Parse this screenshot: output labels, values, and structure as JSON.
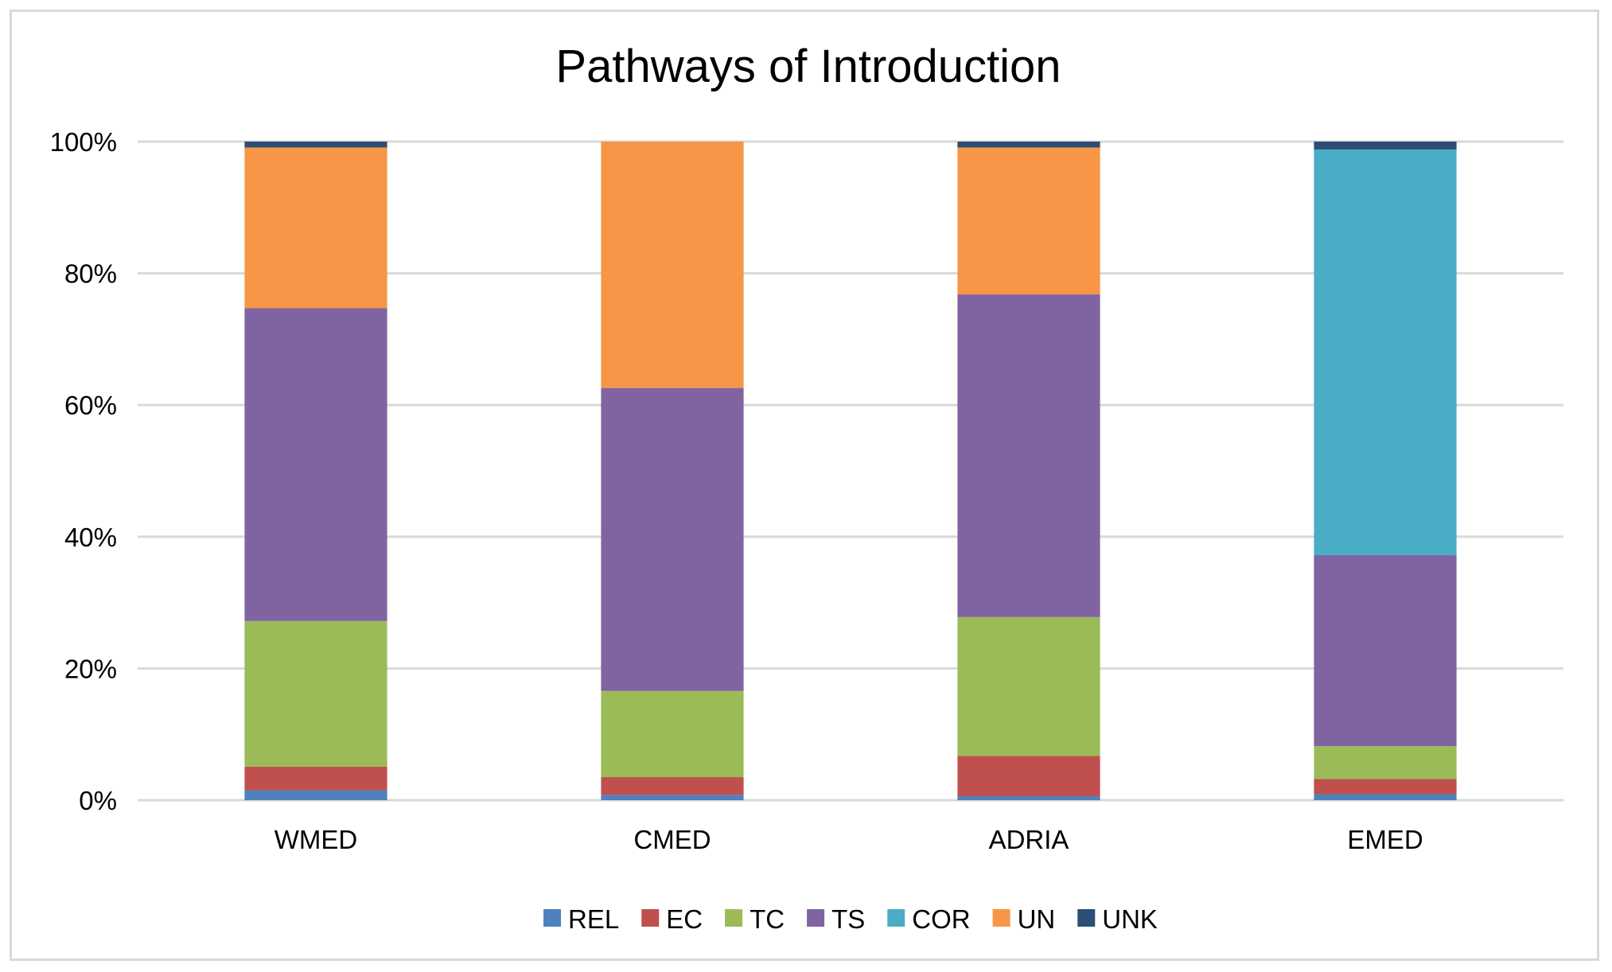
{
  "chart_data": {
    "type": "bar",
    "stacked": true,
    "percent_stacked": true,
    "title": "Pathways of Introduction",
    "xlabel": "",
    "ylabel": "",
    "ylim": [
      0,
      100
    ],
    "yticks": [
      0,
      20,
      40,
      60,
      80,
      100
    ],
    "ytick_labels": [
      "0%",
      "20%",
      "40%",
      "60%",
      "80%",
      "100%"
    ],
    "grid": true,
    "legend_position": "bottom",
    "categories": [
      "WMED",
      "CMED",
      "ADRIA",
      "EMED"
    ],
    "series": [
      {
        "name": "REL",
        "color": "#4f81bd",
        "values": [
          1.5,
          0.8,
          0.6,
          0.9
        ]
      },
      {
        "name": "EC",
        "color": "#c0504d",
        "values": [
          3.6,
          2.7,
          6.1,
          2.3
        ]
      },
      {
        "name": "TC",
        "color": "#9bbb59",
        "values": [
          22.1,
          13.1,
          21.1,
          5.0
        ]
      },
      {
        "name": "TS",
        "color": "#8064a2",
        "values": [
          47.5,
          46.0,
          49.0,
          29.0
        ]
      },
      {
        "name": "COR",
        "color": "#4bacc6",
        "values": [
          0,
          0,
          0,
          61.6
        ]
      },
      {
        "name": "UN",
        "color": "#f79646",
        "values": [
          24.4,
          37.4,
          22.3,
          0
        ]
      },
      {
        "name": "UNK",
        "color": "#2c4d75",
        "values": [
          0.9,
          0,
          0.9,
          1.2
        ]
      }
    ]
  }
}
